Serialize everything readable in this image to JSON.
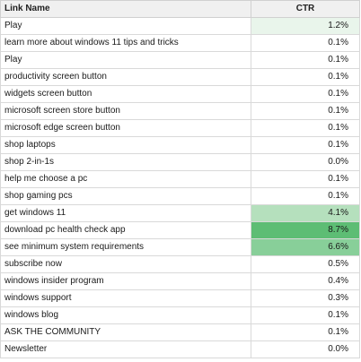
{
  "table": {
    "columns": {
      "link_name": "Link Name",
      "ctr": "CTR"
    },
    "rows": [
      {
        "name": "Play",
        "ctr": "1.2%",
        "heat": "#e9f5eb"
      },
      {
        "name": "learn more about windows 11 tips and tricks",
        "ctr": "0.1%",
        "heat": "#ffffff"
      },
      {
        "name": "Play",
        "ctr": "0.1%",
        "heat": "#ffffff"
      },
      {
        "name": "productivity screen button",
        "ctr": "0.1%",
        "heat": "#ffffff"
      },
      {
        "name": "widgets screen button",
        "ctr": "0.1%",
        "heat": "#ffffff"
      },
      {
        "name": "microsoft screen store button",
        "ctr": "0.1%",
        "heat": "#ffffff"
      },
      {
        "name": "microsoft edge screen button",
        "ctr": "0.1%",
        "heat": "#ffffff"
      },
      {
        "name": "shop laptops",
        "ctr": "0.1%",
        "heat": "#ffffff"
      },
      {
        "name": "shop 2-in-1s",
        "ctr": "0.0%",
        "heat": "#ffffff"
      },
      {
        "name": "help me choose a pc",
        "ctr": "0.1%",
        "heat": "#ffffff"
      },
      {
        "name": "shop gaming pcs",
        "ctr": "0.1%",
        "heat": "#ffffff"
      },
      {
        "name": "get windows 11",
        "ctr": "4.1%",
        "heat": "#b5e0bd"
      },
      {
        "name": "download pc health check app",
        "ctr": "8.7%",
        "heat": "#5dbd74"
      },
      {
        "name": "see minimum system requirements",
        "ctr": "6.6%",
        "heat": "#88cf99"
      },
      {
        "name": "subscribe now",
        "ctr": "0.5%",
        "heat": "#ffffff"
      },
      {
        "name": "windows insider program",
        "ctr": "0.4%",
        "heat": "#ffffff"
      },
      {
        "name": "windows support",
        "ctr": "0.3%",
        "heat": "#ffffff"
      },
      {
        "name": "windows blog",
        "ctr": "0.1%",
        "heat": "#ffffff"
      },
      {
        "name": "ASK THE COMMUNITY",
        "ctr": "0.1%",
        "heat": "#ffffff"
      },
      {
        "name": "Newsletter",
        "ctr": "0.0%",
        "heat": "#ffffff"
      }
    ]
  },
  "colors": {
    "header_bg": "#f0f0f0",
    "grid_border": "#d9d9d9",
    "heat_low": "#ffffff",
    "heat_high": "#5dbd74"
  }
}
